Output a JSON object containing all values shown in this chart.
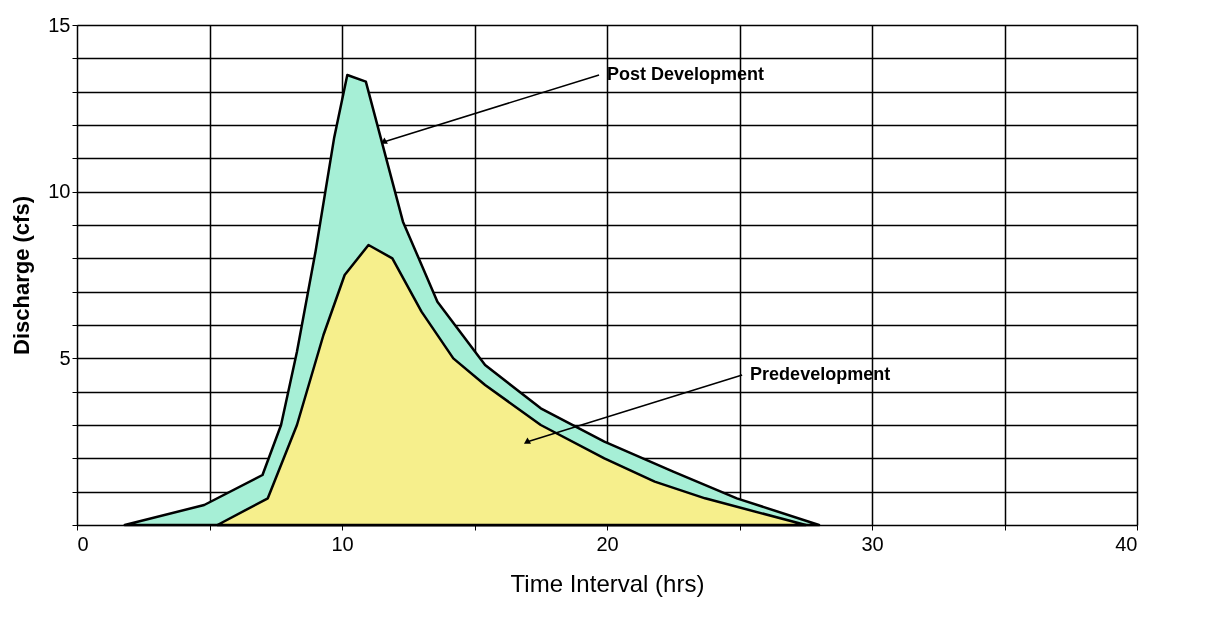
{
  "chart_data": {
    "type": "area",
    "xlabel": "Time Interval (hrs)",
    "ylabel": "Discharge (cfs)",
    "series": [
      {
        "color": "#a6efd6",
        "x": [
          1.8,
          4.8,
          7.0,
          7.7,
          8.3,
          9.0,
          9.7,
          10.2,
          10.9,
          11.4,
          12.3,
          13.6,
          15.4,
          17.5,
          19.9,
          22.5,
          24.9,
          28.0
        ],
        "values": [
          0,
          0.6,
          1.5,
          3.0,
          5.2,
          8.2,
          11.6,
          13.5,
          13.3,
          11.8,
          9.1,
          6.7,
          4.8,
          3.5,
          2.5,
          1.6,
          0.8,
          0
        ]
      },
      {
        "color": "#f6ef8c",
        "x": [
          5.3,
          7.2,
          8.3,
          9.3,
          10.1,
          11.0,
          11.9,
          13.0,
          14.2,
          15.4,
          17.5,
          19.9,
          21.8,
          23.7,
          27.5
        ],
        "values": [
          0,
          0.8,
          3.0,
          5.7,
          7.5,
          8.4,
          8.0,
          6.4,
          5.0,
          4.2,
          3.0,
          2.0,
          1.3,
          0.8,
          0
        ]
      }
    ],
    "annotations": [
      {
        "text": "Post Development",
        "x": 11.6,
        "y": 11.5
      },
      {
        "text": "Predevelopment",
        "x": 17.0,
        "y": 2.5
      }
    ],
    "xlim": [
      0,
      40
    ],
    "xticks": [
      0,
      {
        "value": 5,
        "label": null
      },
      10,
      {
        "value": 15,
        "label": null
      },
      20,
      {
        "value": 25,
        "label": null
      },
      30,
      {
        "value": 35,
        "label": null
      },
      40
    ],
    "ylim": [
      0,
      15
    ],
    "yticks": [
      {
        "value": 0,
        "label": null
      },
      {
        "value": 1,
        "label": null
      },
      {
        "value": 2,
        "label": null
      },
      {
        "value": 3,
        "label": null
      },
      {
        "value": 4,
        "label": null
      },
      5,
      {
        "value": 6,
        "label": null
      },
      {
        "value": 7,
        "label": null
      },
      {
        "value": 8,
        "label": null
      },
      {
        "value": 9,
        "label": null
      },
      10,
      {
        "value": 11,
        "label": null
      },
      {
        "value": 12,
        "label": null
      },
      {
        "value": 13,
        "label": null
      },
      {
        "value": 14,
        "label": null
      },
      15
    ],
    "grid": true
  }
}
